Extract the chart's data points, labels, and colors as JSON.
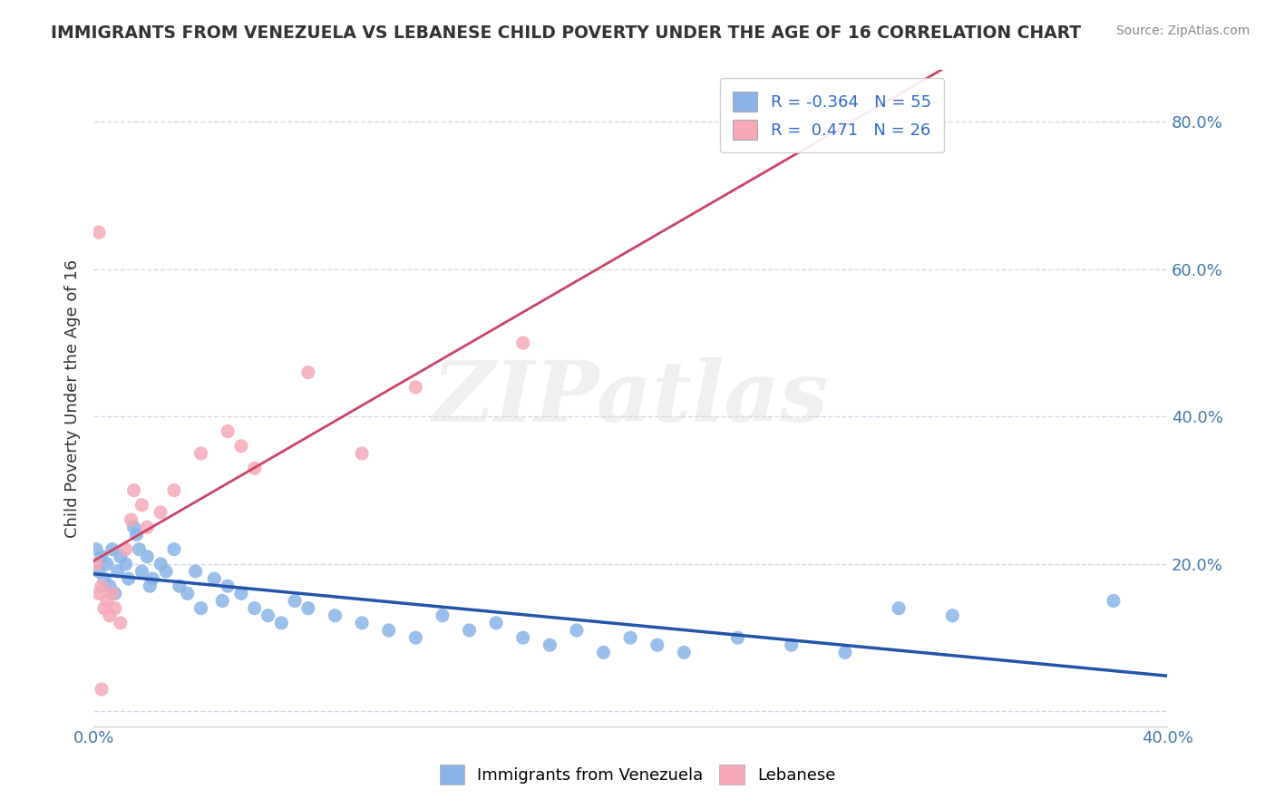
{
  "title": "IMMIGRANTS FROM VENEZUELA VS LEBANESE CHILD POVERTY UNDER THE AGE OF 16 CORRELATION CHART",
  "source": "Source: ZipAtlas.com",
  "ylabel": "Child Poverty Under the Age of 16",
  "right_yticks": [
    0.0,
    0.2,
    0.4,
    0.6,
    0.8
  ],
  "right_yticklabels": [
    "",
    "20.0%",
    "40.0%",
    "60.0%",
    "80.0%"
  ],
  "xlim": [
    0.0,
    0.4
  ],
  "ylim": [
    -0.02,
    0.87
  ],
  "legend_r1": "R = -0.364   N = 55",
  "legend_r2": "R =  0.471   N = 26",
  "watermark": "ZIPatlas",
  "blue_color": "#8ab4e8",
  "pink_color": "#f4a8b8",
  "blue_line_color": "#2255aa",
  "pink_line_color": "#cc4466",
  "blue_scatter": [
    [
      0.001,
      0.22
    ],
    [
      0.002,
      0.19
    ],
    [
      0.003,
      0.21
    ],
    [
      0.004,
      0.18
    ],
    [
      0.005,
      0.2
    ],
    [
      0.006,
      0.17
    ],
    [
      0.007,
      0.22
    ],
    [
      0.008,
      0.16
    ],
    [
      0.009,
      0.19
    ],
    [
      0.01,
      0.21
    ],
    [
      0.012,
      0.2
    ],
    [
      0.013,
      0.18
    ],
    [
      0.015,
      0.25
    ],
    [
      0.016,
      0.24
    ],
    [
      0.017,
      0.22
    ],
    [
      0.018,
      0.19
    ],
    [
      0.02,
      0.21
    ],
    [
      0.021,
      0.17
    ],
    [
      0.022,
      0.18
    ],
    [
      0.025,
      0.2
    ],
    [
      0.027,
      0.19
    ],
    [
      0.03,
      0.22
    ],
    [
      0.032,
      0.17
    ],
    [
      0.035,
      0.16
    ],
    [
      0.038,
      0.19
    ],
    [
      0.04,
      0.14
    ],
    [
      0.045,
      0.18
    ],
    [
      0.048,
      0.15
    ],
    [
      0.05,
      0.17
    ],
    [
      0.055,
      0.16
    ],
    [
      0.06,
      0.14
    ],
    [
      0.065,
      0.13
    ],
    [
      0.07,
      0.12
    ],
    [
      0.075,
      0.15
    ],
    [
      0.08,
      0.14
    ],
    [
      0.09,
      0.13
    ],
    [
      0.1,
      0.12
    ],
    [
      0.11,
      0.11
    ],
    [
      0.12,
      0.1
    ],
    [
      0.13,
      0.13
    ],
    [
      0.14,
      0.11
    ],
    [
      0.15,
      0.12
    ],
    [
      0.16,
      0.1
    ],
    [
      0.17,
      0.09
    ],
    [
      0.18,
      0.11
    ],
    [
      0.19,
      0.08
    ],
    [
      0.2,
      0.1
    ],
    [
      0.21,
      0.09
    ],
    [
      0.22,
      0.08
    ],
    [
      0.24,
      0.1
    ],
    [
      0.26,
      0.09
    ],
    [
      0.28,
      0.08
    ],
    [
      0.3,
      0.14
    ],
    [
      0.32,
      0.13
    ],
    [
      0.38,
      0.15
    ]
  ],
  "pink_scatter": [
    [
      0.001,
      0.2
    ],
    [
      0.002,
      0.16
    ],
    [
      0.003,
      0.17
    ],
    [
      0.004,
      0.14
    ],
    [
      0.005,
      0.15
    ],
    [
      0.006,
      0.13
    ],
    [
      0.007,
      0.16
    ],
    [
      0.008,
      0.14
    ],
    [
      0.01,
      0.12
    ],
    [
      0.012,
      0.22
    ],
    [
      0.014,
      0.26
    ],
    [
      0.015,
      0.3
    ],
    [
      0.018,
      0.28
    ],
    [
      0.02,
      0.25
    ],
    [
      0.025,
      0.27
    ],
    [
      0.03,
      0.3
    ],
    [
      0.04,
      0.35
    ],
    [
      0.05,
      0.38
    ],
    [
      0.055,
      0.36
    ],
    [
      0.06,
      0.33
    ],
    [
      0.08,
      0.46
    ],
    [
      0.1,
      0.35
    ],
    [
      0.12,
      0.44
    ],
    [
      0.16,
      0.5
    ],
    [
      0.002,
      0.65
    ],
    [
      0.003,
      0.03
    ]
  ],
  "background_color": "#ffffff",
  "grid_color": "#d0d8e8",
  "title_color": "#333333",
  "axis_label_color": "#4477aa",
  "tick_color": "#4477aa"
}
